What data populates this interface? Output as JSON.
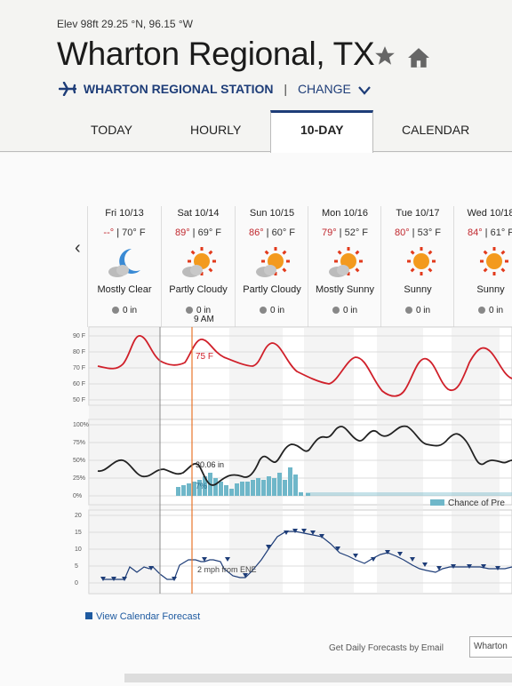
{
  "header": {
    "elevation": "Elev 98ft 29.25 °N, 96.15 °W",
    "title": "Wharton Regional, TX",
    "station": "WHARTON REGIONAL STATION",
    "separator": "|",
    "change": "CHANGE"
  },
  "tabs": [
    {
      "label": "TODAY"
    },
    {
      "label": "HOURLY"
    },
    {
      "label": "10-DAY"
    },
    {
      "label": "CALENDAR"
    }
  ],
  "days": [
    {
      "date": "Fri 10/13",
      "hi": "--°",
      "lo": "70° F",
      "cond": "Mostly Clear",
      "precip": "0 in",
      "icon": "moon-cloud-icon"
    },
    {
      "date": "Sat 10/14",
      "hi": "89°",
      "lo": "69° F",
      "cond": "Partly Cloudy",
      "precip": "0 in",
      "icon": "sun-cloud-icon"
    },
    {
      "date": "Sun 10/15",
      "hi": "86°",
      "lo": "60° F",
      "cond": "Partly Cloudy",
      "precip": "0 in",
      "icon": "sun-cloud-icon"
    },
    {
      "date": "Mon 10/16",
      "hi": "79°",
      "lo": "52° F",
      "cond": "Mostly Sunny",
      "precip": "0 in",
      "icon": "sun-cloud-icon"
    },
    {
      "date": "Tue 10/17",
      "hi": "80°",
      "lo": "53° F",
      "cond": "Sunny",
      "precip": "0 in",
      "icon": "sun-icon"
    },
    {
      "date": "Wed 10/18",
      "hi": "84°",
      "lo": "61° F",
      "cond": "Sunny",
      "precip": "0 in",
      "icon": "sun-icon"
    }
  ],
  "chart": {
    "cursor_time": "9 AM",
    "temp_readout": "75 F",
    "pressure_readout": "30.06 in",
    "precip_readout": "7%",
    "wind_readout": "2 mph from ENE",
    "legend_label": "Chance of Pre",
    "temp_ticks": [
      "90 F",
      "80 F",
      "70 F",
      "60 F",
      "50 F"
    ],
    "pct_ticks": [
      "100%",
      "75%",
      "50%",
      "25%",
      "0%"
    ],
    "wind_ticks": [
      "20",
      "15",
      "10",
      "5",
      "0"
    ],
    "colors": {
      "temp": "#d0202a",
      "pressure": "#222222",
      "precip": "#6fb7c9",
      "wind": "#1e3d78",
      "cursor": "#e8742a"
    }
  },
  "footer": {
    "calendar_link": "View Calendar Forecast",
    "email_label": "Get Daily Forecasts by Email",
    "email_value": "Wharton"
  }
}
